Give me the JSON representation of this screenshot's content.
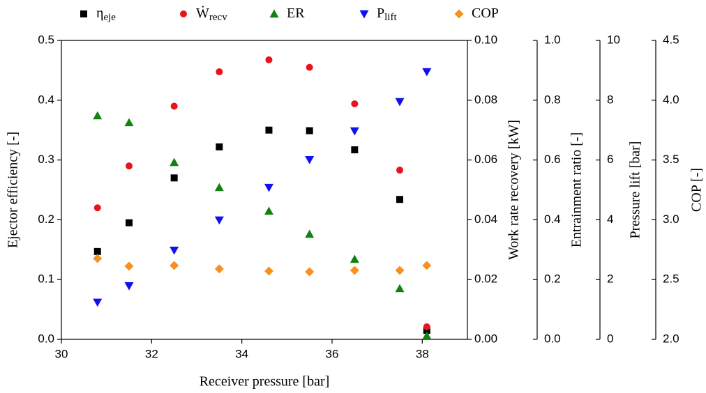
{
  "chart_data": {
    "type": "scatter",
    "xlabel": "Receiver pressure [bar]",
    "xlim": [
      30,
      39
    ],
    "xticks": [
      30,
      32,
      34,
      36,
      38
    ],
    "ylabel": "Ejector efficiency [-]",
    "ylim": [
      0,
      0.5
    ],
    "yticks": [
      {
        "value": 0,
        "label": "0.0"
      },
      {
        "value": 0.1,
        "label": "0.1"
      },
      {
        "value": 0.2,
        "label": "0.2"
      },
      {
        "value": 0.3,
        "label": "0.3"
      },
      {
        "value": 0.4,
        "label": "0.4"
      },
      {
        "value": 0.5,
        "label": "0.5"
      }
    ],
    "y2label": "Work rate recovery [kW]",
    "y2lim": [
      0,
      0.1
    ],
    "y2ticks": [
      {
        "value": 0,
        "label": "0.00"
      },
      {
        "value": 0.02,
        "label": "0.02"
      },
      {
        "value": 0.04,
        "label": "0.04"
      },
      {
        "value": 0.06,
        "label": "0.06"
      },
      {
        "value": 0.08,
        "label": "0.08"
      },
      {
        "value": 0.1,
        "label": "0.10"
      }
    ],
    "y3label": "Entrainment ratio [-]",
    "y3lim": [
      0,
      1
    ],
    "y3ticks": [
      {
        "value": 0,
        "label": "0.0"
      },
      {
        "value": 0.2,
        "label": "0.2"
      },
      {
        "value": 0.4,
        "label": "0.4"
      },
      {
        "value": 0.6,
        "label": "0.6"
      },
      {
        "value": 0.8,
        "label": "0.8"
      },
      {
        "value": 1,
        "label": "1.0"
      }
    ],
    "y4label": "Pressure lift [bar]",
    "y4lim": [
      0,
      10
    ],
    "y4ticks": [
      0,
      2,
      4,
      6,
      8,
      10
    ],
    "y5label": "COP [-]",
    "y5lim": [
      2,
      4.5
    ],
    "y5ticks": [
      {
        "value": 2,
        "label": "2.0"
      },
      {
        "value": 2.5,
        "label": "2.5"
      },
      {
        "value": 3,
        "label": "3.0"
      },
      {
        "value": 3.5,
        "label": "3.5"
      },
      {
        "value": 4,
        "label": "4.0"
      },
      {
        "value": 4.5,
        "label": "4.5"
      }
    ],
    "x": [
      30.8,
      31.5,
      32.5,
      33.5,
      34.6,
      35.5,
      36.5,
      37.5,
      38.1
    ],
    "series": [
      {
        "name": "η",
        "name_sub": "eje",
        "color": "#000000",
        "marker": "square",
        "axis": "y",
        "values": [
          0.147,
          0.195,
          0.27,
          0.322,
          0.35,
          0.349,
          0.317,
          0.234,
          0.015
        ]
      },
      {
        "name": "Ẇ",
        "name_sub": "recv",
        "color": "#e8141c",
        "marker": "circle",
        "axis": "y2",
        "values": [
          0.044,
          0.058,
          0.078,
          0.0895,
          0.0935,
          0.091,
          0.0788,
          0.0566,
          0.0042
        ]
      },
      {
        "name": "ER",
        "color": "#118211",
        "marker": "triangle-up",
        "axis": "y3",
        "values": [
          0.748,
          0.725,
          0.592,
          0.508,
          0.429,
          0.352,
          0.268,
          0.17,
          0.012
        ]
      },
      {
        "name": "P",
        "name_sub": "lift",
        "color": "#1010f0",
        "marker": "triangle-down",
        "axis": "y4",
        "values": [
          1.24,
          1.79,
          2.98,
          3.99,
          5.08,
          6.01,
          6.97,
          7.95,
          8.95
        ]
      },
      {
        "name": "COP",
        "color": "#f7901e",
        "marker": "diamond",
        "axis": "y5",
        "values": [
          2.676,
          2.612,
          2.618,
          2.589,
          2.571,
          2.565,
          2.577,
          2.577,
          2.618
        ]
      }
    ]
  }
}
